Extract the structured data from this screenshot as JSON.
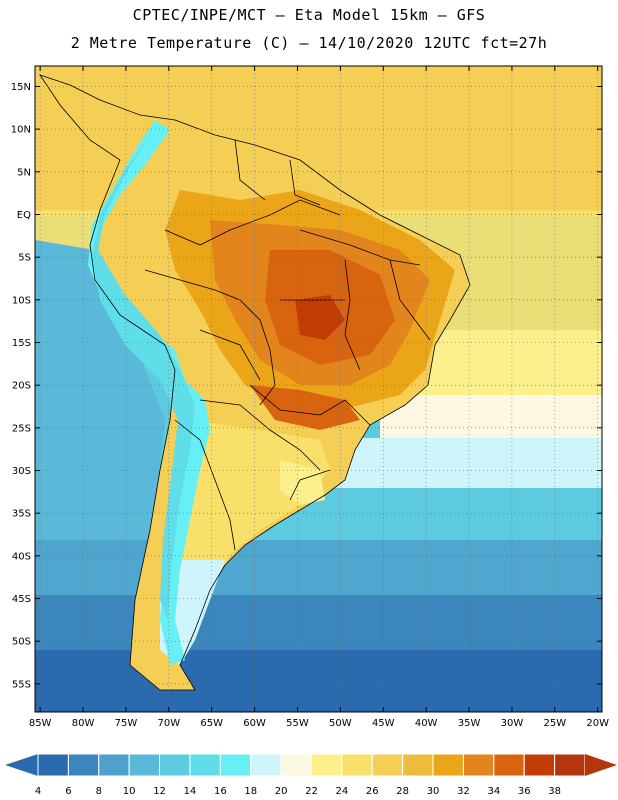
{
  "header": {
    "line1": "CPTEC/INPE/MCT –  Eta Model 15km – GFS",
    "line2": "2 Metre Temperature (C) – 14/10/2020 12UTC fct=27h"
  },
  "map": {
    "lat_labels": [
      "15N",
      "10N",
      "5N",
      "EQ",
      "5S",
      "10S",
      "15S",
      "20S",
      "25S",
      "30S",
      "35S",
      "40S",
      "45S",
      "50S",
      "55S"
    ],
    "lon_labels": [
      "85W",
      "80W",
      "75W",
      "70W",
      "65W",
      "60W",
      "55W",
      "50W",
      "45W",
      "40W",
      "35W",
      "30W",
      "25W",
      "20W"
    ]
  },
  "colorbar": {
    "labels": [
      "4",
      "6",
      "8",
      "10",
      "12",
      "14",
      "16",
      "18",
      "20",
      "22",
      "24",
      "26",
      "28",
      "30",
      "32",
      "34",
      "36",
      "38"
    ],
    "colors": [
      "#2a6aae",
      "#3b86bd",
      "#4ea2cc",
      "#5ab9d8",
      "#5ccbe0",
      "#5fdde8",
      "#66f0f5",
      "#cdf5fb",
      "#fdf8e3",
      "#fbf08c",
      "#f9e06b",
      "#f4ce55",
      "#eebc3d",
      "#eba518",
      "#e3851d",
      "#d96410",
      "#c23d06",
      "#b3360c"
    ],
    "under_color": "#2a6aae",
    "over_color": "#b3360c"
  }
}
